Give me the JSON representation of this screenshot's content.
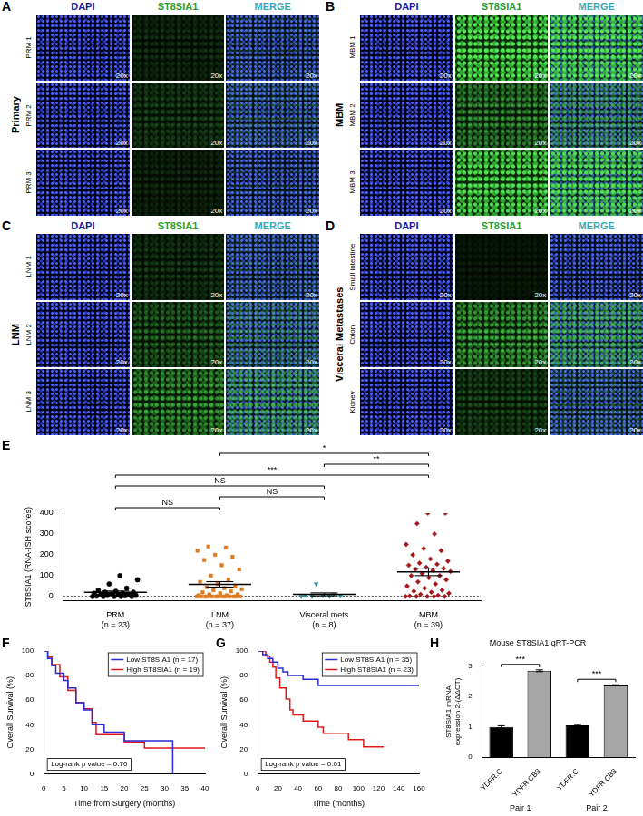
{
  "image_panels": [
    {
      "panel": "A",
      "label": "Primary",
      "columns": [
        {
          "label": "DAPI",
          "color": "#1a1aa0"
        },
        {
          "label": "ST8SIA1",
          "color": "#2e9e2e"
        },
        {
          "label": "MERGE",
          "color": "#3aa7b5"
        }
      ],
      "rows": [
        "PRM 1",
        "PRM 2",
        "PRM 3"
      ],
      "magnification": "20x"
    },
    {
      "panel": "B",
      "label": "MBM",
      "columns": [
        {
          "label": "DAPI",
          "color": "#1a1aa0"
        },
        {
          "label": "ST8SIA1",
          "color": "#2e9e2e"
        },
        {
          "label": "MERGE",
          "color": "#3aa7b5"
        }
      ],
      "rows": [
        "MBM 1",
        "MBM 2",
        "MBM 3"
      ],
      "magnification": "20x"
    },
    {
      "panel": "C",
      "label": "LNM",
      "columns": [
        {
          "label": "DAPI",
          "color": "#1a1aa0"
        },
        {
          "label": "ST8SIA1",
          "color": "#2e9e2e"
        },
        {
          "label": "MERGE",
          "color": "#3aa7b5"
        }
      ],
      "rows": [
        "LNM 1",
        "LNM 2",
        "LNM 3"
      ],
      "magnification": "20x"
    },
    {
      "panel": "D",
      "label": "Visceral Metastases",
      "columns": [
        {
          "label": "DAPI",
          "color": "#1a1aa0"
        },
        {
          "label": "ST8SIA1",
          "color": "#2e9e2e"
        },
        {
          "label": "MERGE",
          "color": "#3aa7b5"
        }
      ],
      "rows": [
        "Small intestine",
        "Colon",
        "Kidney"
      ],
      "magnification": "20x"
    }
  ],
  "chart_data": [
    {
      "panel": "E",
      "type": "scatter",
      "y_label": "ST8SIA1 (RNA-ISH scores)",
      "ylim": [
        -20,
        400
      ],
      "yticks": [
        0,
        100,
        200,
        300,
        400
      ],
      "reference_y": 0,
      "series": [
        {
          "name": "PRM",
          "sublabel": "(n = 23)",
          "color": "#000000",
          "marker": "circle",
          "values": [
            0,
            0,
            0,
            0,
            0,
            2,
            3,
            5,
            5,
            8,
            10,
            10,
            12,
            15,
            15,
            20,
            20,
            25,
            30,
            40,
            60,
            80,
            100
          ],
          "mean": 20,
          "sem": 6
        },
        {
          "name": "LNM",
          "sublabel": "(n = 37)",
          "color": "#e07a1f",
          "marker": "square",
          "values": [
            0,
            0,
            0,
            0,
            0,
            0,
            0,
            0,
            0,
            0,
            0,
            0,
            0,
            5,
            5,
            10,
            10,
            15,
            20,
            25,
            30,
            35,
            40,
            45,
            50,
            60,
            70,
            80,
            100,
            130,
            150,
            175,
            190,
            200,
            220,
            235,
            240
          ],
          "mean": 58,
          "sem": 13
        },
        {
          "name": "Visceral mets",
          "sublabel": "(n = 8)",
          "color": "#2f8f8f",
          "marker": "triangle-down",
          "values": [
            0,
            0,
            0,
            2,
            3,
            5,
            10,
            60
          ],
          "mean": 10,
          "sem": 7
        },
        {
          "name": "MBM",
          "sublabel": "(n = 39)",
          "color": "#a3161b",
          "marker": "diamond",
          "values": [
            0,
            0,
            0,
            0,
            0,
            2,
            5,
            10,
            15,
            20,
            25,
            30,
            40,
            50,
            60,
            70,
            80,
            90,
            100,
            100,
            110,
            120,
            125,
            130,
            135,
            140,
            150,
            155,
            160,
            170,
            180,
            200,
            220,
            230,
            250,
            300,
            350,
            400,
            400
          ],
          "mean": 118,
          "sem": 18
        }
      ],
      "comparisons": [
        {
          "from": "LNM",
          "to": "MBM",
          "label": "*"
        },
        {
          "from": "Visceral mets",
          "to": "MBM",
          "label": "**"
        },
        {
          "from": "PRM",
          "to": "MBM",
          "label": "***"
        },
        {
          "from": "PRM",
          "to": "Visceral mets",
          "label": "NS"
        },
        {
          "from": "LNM",
          "to": "Visceral mets",
          "label": "NS"
        },
        {
          "from": "PRM",
          "to": "LNM",
          "label": "NS"
        }
      ]
    },
    {
      "panel": "F",
      "type": "line",
      "x_label": "Time from Surgery (months)",
      "y_label": "Overall Survival (%)",
      "xlim": [
        0,
        40
      ],
      "xticks": [
        0,
        5,
        10,
        15,
        20,
        25,
        30,
        35,
        40
      ],
      "ylim": [
        0,
        100
      ],
      "yticks": [
        0,
        20,
        40,
        60,
        80,
        100
      ],
      "line_style": "steps",
      "legend": "upper right",
      "annotation": "Log-rank p value = 0.70",
      "series": [
        {
          "name": "Low ST8SIA1 (n = 17)",
          "color": "#2a2ad6",
          "x": [
            0,
            1,
            2,
            3,
            5,
            6,
            8,
            10,
            12,
            15,
            20,
            32
          ],
          "values": [
            100,
            94,
            88,
            82,
            76,
            70,
            58,
            52,
            40,
            34,
            27,
            0
          ]
        },
        {
          "name": "High ST8SIA1 (n = 19)",
          "color": "#e01a1a",
          "x": [
            0,
            1,
            2,
            4,
            6,
            8,
            10,
            12,
            13,
            20,
            25,
            40
          ],
          "values": [
            100,
            95,
            89,
            79,
            68,
            58,
            53,
            42,
            32,
            26,
            21,
            21
          ]
        }
      ]
    },
    {
      "panel": "G",
      "type": "line",
      "x_label": "Time (months)",
      "y_label": "Overall Survival (%)",
      "xlim": [
        0,
        160
      ],
      "xticks": [
        0,
        20,
        40,
        60,
        80,
        100,
        120,
        140,
        160
      ],
      "ylim": [
        0,
        100
      ],
      "yticks": [
        0,
        20,
        40,
        60,
        80,
        100
      ],
      "line_style": "steps",
      "legend": "upper right",
      "annotation": "Log-rank p value = 0.01",
      "series": [
        {
          "name": "Low ST8SIA1 (n = 35)",
          "color": "#2a2ad6",
          "x": [
            0,
            5,
            10,
            15,
            20,
            25,
            30,
            45,
            60,
            160
          ],
          "values": [
            100,
            97,
            94,
            91,
            86,
            83,
            80,
            77,
            72,
            72
          ]
        },
        {
          "name": "High ST8SIA1 (n = 23)",
          "color": "#e01a1a",
          "x": [
            0,
            8,
            12,
            15,
            18,
            22,
            28,
            32,
            35,
            45,
            60,
            65,
            90,
            105,
            125
          ],
          "values": [
            100,
            96,
            91,
            87,
            78,
            70,
            61,
            52,
            48,
            43,
            38,
            33,
            28,
            22,
            22
          ]
        }
      ]
    },
    {
      "panel": "H",
      "type": "bar",
      "title": "Mouse ST8SIA1 qRT-PCR",
      "y_label": [
        "ST8SIA1 mRNA",
        "expression 2-(ΔΔCT)"
      ],
      "categories": [
        "YDFR.C",
        "YDFR.CB3",
        "YDFR.C",
        "YDFR.CB3"
      ],
      "group_labels": [
        "Pair 1",
        "Pair 1",
        "Pair 2",
        "Pair 2"
      ],
      "values": [
        1.0,
        2.85,
        1.05,
        2.37
      ],
      "errors": [
        0.04,
        0.03,
        0.03,
        0.02
      ],
      "colors": [
        "#000000",
        "#a6a6a6",
        "#000000",
        "#a6a6a6"
      ],
      "ylim": [
        0,
        3
      ],
      "yticks": [
        0,
        1,
        2,
        3
      ],
      "comparisons": [
        {
          "from": 0,
          "to": 1,
          "label": "***"
        },
        {
          "from": 2,
          "to": 3,
          "label": "***"
        }
      ]
    }
  ]
}
